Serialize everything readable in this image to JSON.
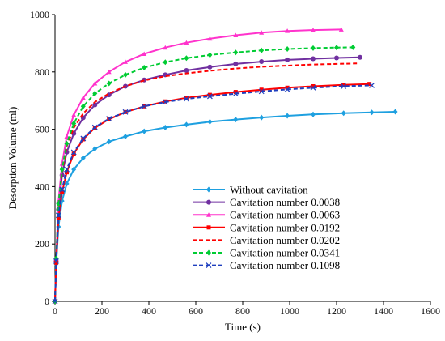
{
  "chart_data": {
    "type": "line",
    "xlabel": "Time (s)",
    "ylabel": "Desorption Volume (ml)",
    "xlim": [
      0,
      1600
    ],
    "ylim": [
      0,
      1000
    ],
    "x_ticks": [
      0,
      200,
      400,
      600,
      800,
      1000,
      1200,
      1400,
      1600
    ],
    "y_ticks": [
      0,
      200,
      400,
      600,
      800,
      1000
    ],
    "grid": false,
    "legend_position": "bottom-right",
    "series": [
      {
        "name": "Without cavitation",
        "color": "#1ea0e0",
        "dashed": false,
        "marker": "diamond",
        "x": [
          0,
          5,
          15,
          30,
          50,
          80,
          120,
          170,
          230,
          300,
          380,
          470,
          560,
          660,
          770,
          880,
          990,
          1100,
          1230,
          1350,
          1450
        ],
        "y": [
          0,
          130,
          260,
          350,
          410,
          460,
          500,
          532,
          557,
          575,
          593,
          606,
          616,
          626,
          634,
          641,
          647,
          652,
          656,
          659,
          661
        ]
      },
      {
        "name": "Cavitation number 0.0038",
        "color": "#7030a0",
        "dashed": false,
        "marker": "circle",
        "x": [
          0,
          5,
          15,
          30,
          50,
          80,
          120,
          170,
          230,
          300,
          380,
          470,
          560,
          660,
          770,
          880,
          990,
          1100,
          1200,
          1300
        ],
        "y": [
          0,
          140,
          320,
          440,
          520,
          585,
          640,
          685,
          720,
          750,
          772,
          790,
          805,
          817,
          828,
          836,
          842,
          846,
          849,
          851
        ]
      },
      {
        "name": "Cavitation number 0.0063",
        "color": "#ff33cc",
        "dashed": false,
        "marker": "triangle",
        "x": [
          0,
          5,
          15,
          30,
          50,
          80,
          120,
          170,
          230,
          300,
          380,
          470,
          560,
          660,
          770,
          880,
          990,
          1100,
          1220
        ],
        "y": [
          0,
          150,
          350,
          480,
          575,
          650,
          710,
          760,
          800,
          835,
          863,
          885,
          902,
          916,
          928,
          937,
          943,
          946,
          948
        ]
      },
      {
        "name": "Cavitation number 0.0192",
        "color": "#ff0000",
        "dashed": false,
        "marker": "square",
        "x": [
          0,
          5,
          15,
          30,
          50,
          80,
          120,
          170,
          230,
          300,
          380,
          470,
          560,
          660,
          770,
          880,
          990,
          1100,
          1230,
          1340
        ],
        "y": [
          0,
          135,
          290,
          380,
          450,
          515,
          565,
          605,
          635,
          660,
          680,
          697,
          710,
          720,
          730,
          738,
          745,
          750,
          755,
          758
        ]
      },
      {
        "name": "Cavitation number 0.0202",
        "color": "#ff0000",
        "dashed": true,
        "marker": "none",
        "x": [
          0,
          5,
          15,
          30,
          50,
          80,
          120,
          170,
          230,
          300,
          380,
          470,
          560,
          660,
          770,
          880,
          990,
          1100,
          1200,
          1290
        ],
        "y": [
          0,
          145,
          330,
          450,
          540,
          605,
          655,
          695,
          725,
          750,
          770,
          785,
          795,
          804,
          812,
          818,
          822,
          826,
          828,
          830
        ]
      },
      {
        "name": "Cavitation number 0.0341",
        "color": "#00cc33",
        "dashed": true,
        "marker": "diamond",
        "x": [
          0,
          5,
          15,
          30,
          50,
          80,
          120,
          170,
          230,
          300,
          380,
          470,
          560,
          660,
          770,
          880,
          990,
          1100,
          1200,
          1270
        ],
        "y": [
          0,
          150,
          340,
          460,
          550,
          620,
          680,
          725,
          760,
          790,
          815,
          834,
          848,
          859,
          868,
          875,
          880,
          883,
          885,
          886
        ]
      },
      {
        "name": "Cavitation number 0.1098",
        "color": "#1f3fbf",
        "dashed": true,
        "marker": "x",
        "x": [
          0,
          5,
          15,
          30,
          50,
          80,
          120,
          170,
          230,
          300,
          380,
          470,
          560,
          660,
          770,
          880,
          990,
          1100,
          1230,
          1350
        ],
        "y": [
          0,
          140,
          300,
          390,
          460,
          520,
          568,
          607,
          637,
          660,
          680,
          695,
          706,
          715,
          724,
          732,
          739,
          745,
          750,
          753
        ]
      }
    ]
  }
}
